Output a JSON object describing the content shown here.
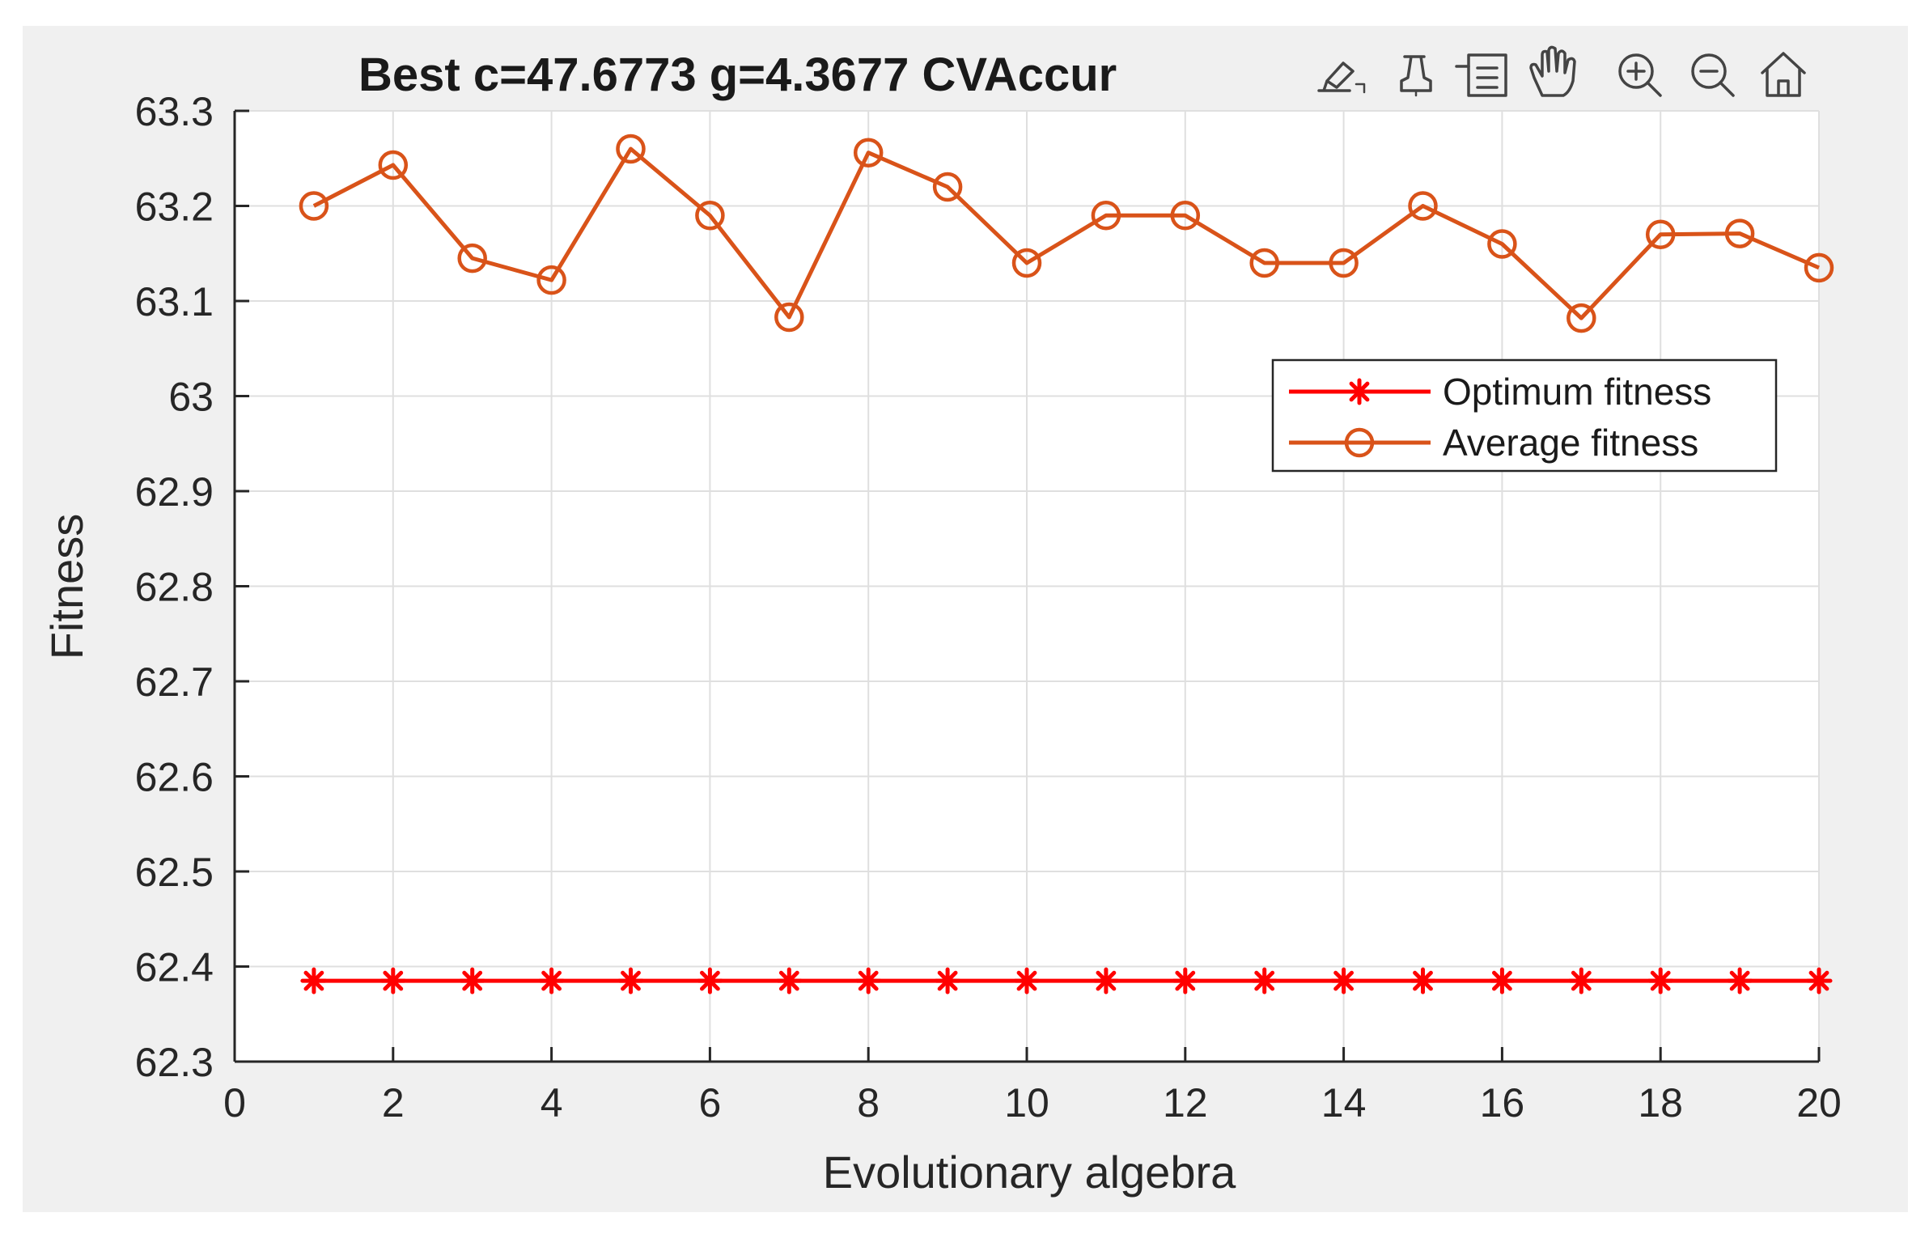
{
  "chart_data": {
    "type": "line",
    "title": "Best c=47.6773 g=4.3677 CVAccur",
    "xlabel": "Evolutionary algebra",
    "ylabel": "Fitness",
    "xlim": [
      0,
      20
    ],
    "ylim": [
      62.3,
      63.3
    ],
    "xticks": [
      0,
      2,
      4,
      6,
      8,
      10,
      12,
      14,
      16,
      18,
      20
    ],
    "xtick_labels": [
      "0",
      "2",
      "4",
      "6",
      "8",
      "10",
      "12",
      "14",
      "16",
      "18",
      "20"
    ],
    "yticks": [
      62.3,
      62.4,
      62.5,
      62.6,
      62.7,
      62.8,
      62.9,
      63.0,
      63.1,
      63.2,
      63.3
    ],
    "ytick_labels": [
      "62.3",
      "62.4",
      "62.5",
      "62.6",
      "62.7",
      "62.8",
      "62.9",
      "63",
      "63.1",
      "63.2",
      "63.3"
    ],
    "grid": true,
    "legend_position": "upper-right",
    "x": [
      1,
      2,
      3,
      4,
      5,
      6,
      7,
      8,
      9,
      10,
      11,
      12,
      13,
      14,
      15,
      16,
      17,
      18,
      19,
      20
    ],
    "series": [
      {
        "name": "Optimum fitness",
        "color": "#ff0000",
        "marker": "asterisk",
        "values": [
          62.385,
          62.385,
          62.385,
          62.385,
          62.385,
          62.385,
          62.385,
          62.385,
          62.385,
          62.385,
          62.385,
          62.385,
          62.385,
          62.385,
          62.385,
          62.385,
          62.385,
          62.385,
          62.385,
          62.385
        ]
      },
      {
        "name": "Average fitness",
        "color": "#d95319",
        "marker": "circle",
        "values": [
          63.2,
          63.243,
          63.145,
          63.122,
          63.26,
          63.19,
          63.083,
          63.256,
          63.22,
          63.14,
          63.19,
          63.19,
          63.14,
          63.14,
          63.2,
          63.16,
          63.082,
          63.17,
          63.171,
          63.135
        ]
      }
    ]
  },
  "toolbar": {
    "icons": [
      "brush-icon",
      "data-tips-icon",
      "legend-icon",
      "pan-icon",
      "zoom-in-icon",
      "zoom-out-icon",
      "home-icon"
    ]
  }
}
